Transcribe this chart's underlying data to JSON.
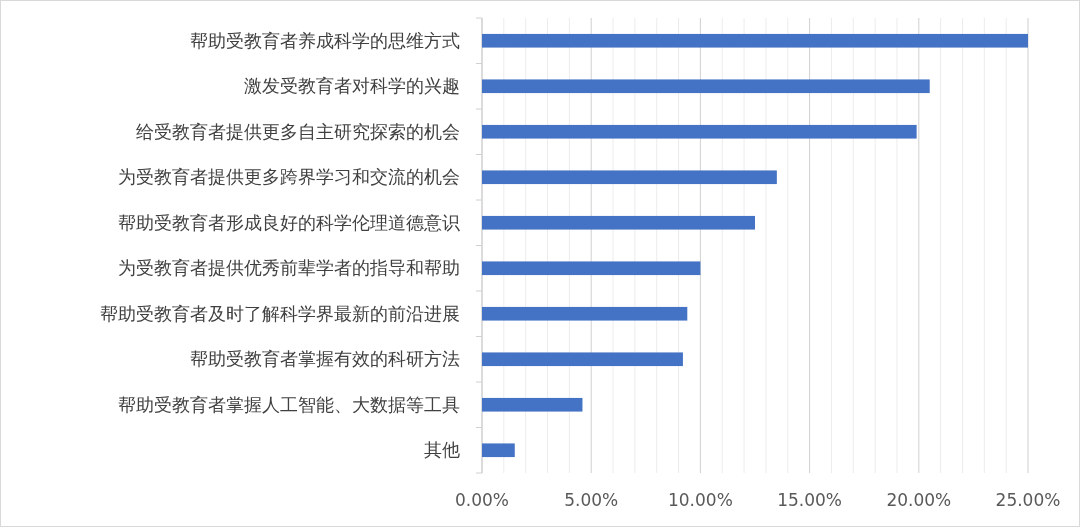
{
  "chart_data": {
    "type": "bar",
    "orientation": "horizontal",
    "categories": [
      "帮助受教育者养成科学的思维方式",
      "激发受教育者对科学的兴趣",
      "给受教育者提供更多自主研究探索的机会",
      "为受教育者提供更多跨界学习和交流的机会",
      "帮助受教育者形成良好的科学伦理道德意识",
      "为受教育者提供优秀前辈学者的指导和帮助",
      "帮助受教育者及时了解科学界最新的前沿进展",
      "帮助受教育者掌握有效的科研方法",
      "帮助受教育者掌握人工智能、大数据等工具",
      "其他"
    ],
    "values": [
      25.0,
      20.5,
      19.9,
      13.5,
      12.5,
      10.0,
      9.4,
      9.2,
      4.6,
      1.5
    ],
    "color": "#4472c4",
    "xlim": [
      0,
      25
    ],
    "xticks": [
      {
        "value": 0,
        "label": "0.00%"
      },
      {
        "value": 1,
        "label": null
      },
      {
        "value": 2,
        "label": null
      },
      {
        "value": 3,
        "label": null
      },
      {
        "value": 4,
        "label": null
      },
      {
        "value": 5,
        "label": "5.00%"
      },
      {
        "value": 6,
        "label": null
      },
      {
        "value": 7,
        "label": null
      },
      {
        "value": 8,
        "label": null
      },
      {
        "value": 9,
        "label": null
      },
      {
        "value": 10,
        "label": "10.00%"
      },
      {
        "value": 11,
        "label": null
      },
      {
        "value": 12,
        "label": null
      },
      {
        "value": 13,
        "label": null
      },
      {
        "value": 14,
        "label": null
      },
      {
        "value": 15,
        "label": "15.00%"
      },
      {
        "value": 16,
        "label": null
      },
      {
        "value": 17,
        "label": null
      },
      {
        "value": 18,
        "label": null
      },
      {
        "value": 19,
        "label": null
      },
      {
        "value": 20,
        "label": "20.00%"
      },
      {
        "value": 21,
        "label": null
      },
      {
        "value": 22,
        "label": null
      },
      {
        "value": 23,
        "label": null
      },
      {
        "value": 24,
        "label": null
      },
      {
        "value": 25,
        "label": "25.00%"
      }
    ],
    "grid": "x"
  }
}
